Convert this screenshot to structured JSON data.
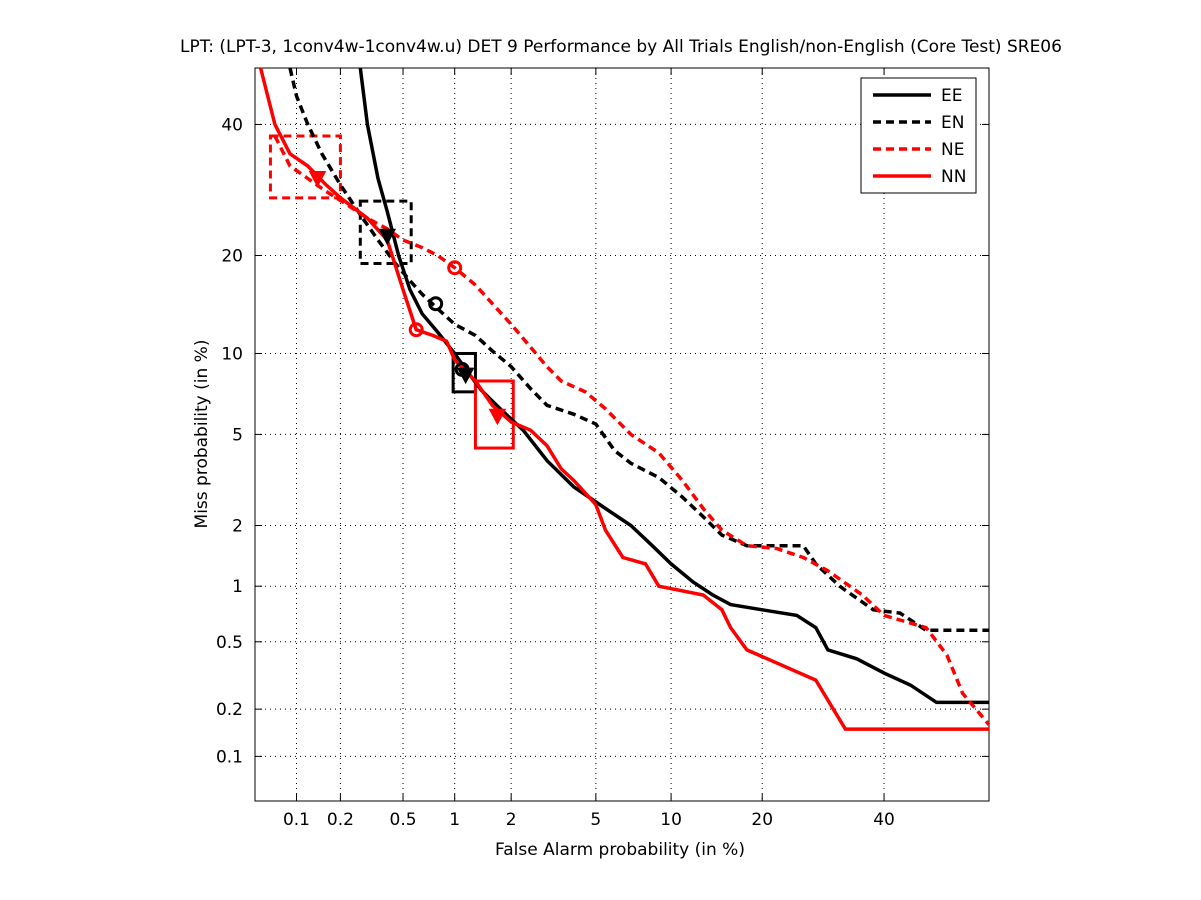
{
  "chart_data": {
    "type": "line",
    "title": "LPT: (LPT-3, 1conv4w-1conv4w.u) DET 9 Performance by All Trials English/non-English (Core Test) SRE06",
    "xlabel": "False Alarm probability (in %)",
    "ylabel": "Miss probability (in %)",
    "x_scale": "probit",
    "y_scale": "probit",
    "xlim": [
      0.05,
      60
    ],
    "ylim": [
      0.05,
      50
    ],
    "x_ticks": [
      0.1,
      0.2,
      0.5,
      1,
      2,
      5,
      10,
      20,
      40
    ],
    "x_tick_labels": [
      "0.1",
      "0.2",
      "0.5",
      "1",
      "2",
      "5",
      "10",
      "20",
      "40"
    ],
    "y_ticks": [
      0.1,
      0.2,
      0.5,
      1,
      2,
      5,
      10,
      20,
      40
    ],
    "y_tick_labels": [
      "0.1",
      "0.2",
      "0.5",
      "1",
      "2",
      "5",
      "10",
      "20",
      "40"
    ],
    "grid": true,
    "legend_position": "top-right",
    "series": [
      {
        "name": "EE",
        "color": "#000000",
        "dash": "solid",
        "points": [
          [
            0.27,
            50
          ],
          [
            0.3,
            40
          ],
          [
            0.35,
            31
          ],
          [
            0.4,
            26
          ],
          [
            0.47,
            20
          ],
          [
            0.55,
            16
          ],
          [
            0.65,
            13.5
          ],
          [
            0.8,
            11.8
          ],
          [
            1.0,
            10
          ],
          [
            1.15,
            8.8
          ],
          [
            1.4,
            7.4
          ],
          [
            1.8,
            6.2
          ],
          [
            2.3,
            5.2
          ],
          [
            3.0,
            3.9
          ],
          [
            4.0,
            3.0
          ],
          [
            5.5,
            2.4
          ],
          [
            7.0,
            2.0
          ],
          [
            8.5,
            1.6
          ],
          [
            10,
            1.3
          ],
          [
            12,
            1.05
          ],
          [
            14,
            0.9
          ],
          [
            16,
            0.8
          ],
          [
            20,
            0.75
          ],
          [
            25,
            0.7
          ],
          [
            28,
            0.6
          ],
          [
            30,
            0.45
          ],
          [
            35,
            0.4
          ],
          [
            40,
            0.33
          ],
          [
            45,
            0.28
          ],
          [
            50,
            0.22
          ],
          [
            60,
            0.22
          ]
        ]
      },
      {
        "name": "EN",
        "color": "#000000",
        "dash": "dashed",
        "points": [
          [
            0.09,
            50
          ],
          [
            0.1,
            45
          ],
          [
            0.12,
            40
          ],
          [
            0.15,
            35
          ],
          [
            0.2,
            30
          ],
          [
            0.28,
            25
          ],
          [
            0.35,
            22
          ],
          [
            0.45,
            19
          ],
          [
            0.55,
            17
          ],
          [
            0.65,
            15.5
          ],
          [
            0.8,
            14
          ],
          [
            1.0,
            12.5
          ],
          [
            1.3,
            11.5
          ],
          [
            1.6,
            10.2
          ],
          [
            2.0,
            9.0
          ],
          [
            2.5,
            7.5
          ],
          [
            3.0,
            6.5
          ],
          [
            4.0,
            6.0
          ],
          [
            5.0,
            5.5
          ],
          [
            6.0,
            4.3
          ],
          [
            7.0,
            3.8
          ],
          [
            9.0,
            3.3
          ],
          [
            11,
            2.7
          ],
          [
            13,
            2.2
          ],
          [
            15,
            1.8
          ],
          [
            18,
            1.6
          ],
          [
            22,
            1.6
          ],
          [
            26,
            1.6
          ],
          [
            28,
            1.3
          ],
          [
            32,
            1.0
          ],
          [
            38,
            0.75
          ],
          [
            43,
            0.72
          ],
          [
            48,
            0.58
          ],
          [
            60,
            0.58
          ]
        ]
      },
      {
        "name": "NE",
        "color": "#ff0000",
        "dash": "dashed",
        "points": [
          [
            0.07,
            38
          ],
          [
            0.09,
            33
          ],
          [
            0.12,
            31
          ],
          [
            0.16,
            29
          ],
          [
            0.22,
            27
          ],
          [
            0.3,
            25
          ],
          [
            0.4,
            23.5
          ],
          [
            0.5,
            22
          ],
          [
            0.65,
            21
          ],
          [
            0.8,
            20
          ],
          [
            1.0,
            18.5
          ],
          [
            1.3,
            16.5
          ],
          [
            1.6,
            14.5
          ],
          [
            2.0,
            12.5
          ],
          [
            2.5,
            10.5
          ],
          [
            3.0,
            9.0
          ],
          [
            3.5,
            8.0
          ],
          [
            4.5,
            7.3
          ],
          [
            5.5,
            6.3
          ],
          [
            7.0,
            5.0
          ],
          [
            9.0,
            4.2
          ],
          [
            11,
            3.2
          ],
          [
            13,
            2.4
          ],
          [
            15,
            1.9
          ],
          [
            18,
            1.6
          ],
          [
            22,
            1.55
          ],
          [
            26,
            1.4
          ],
          [
            30,
            1.2
          ],
          [
            36,
            0.9
          ],
          [
            40,
            0.7
          ],
          [
            48,
            0.6
          ],
          [
            52,
            0.42
          ],
          [
            55,
            0.25
          ],
          [
            60,
            0.16
          ]
        ]
      },
      {
        "name": "NN",
        "color": "#ff0000",
        "dash": "solid",
        "points": [
          [
            0.055,
            50
          ],
          [
            0.07,
            40
          ],
          [
            0.09,
            35
          ],
          [
            0.12,
            33
          ],
          [
            0.16,
            30
          ],
          [
            0.2,
            28
          ],
          [
            0.3,
            25
          ],
          [
            0.4,
            22
          ],
          [
            0.5,
            16
          ],
          [
            0.6,
            12
          ],
          [
            0.75,
            11.5
          ],
          [
            0.9,
            11
          ],
          [
            1.0,
            9.5
          ],
          [
            1.3,
            8.0
          ],
          [
            1.6,
            6.5
          ],
          [
            2.0,
            5.6
          ],
          [
            2.5,
            5.2
          ],
          [
            3.0,
            4.5
          ],
          [
            3.5,
            3.6
          ],
          [
            4.0,
            3.2
          ],
          [
            5.0,
            2.5
          ],
          [
            5.5,
            1.9
          ],
          [
            6.5,
            1.4
          ],
          [
            8.0,
            1.3
          ],
          [
            9.0,
            1.0
          ],
          [
            13,
            0.9
          ],
          [
            15,
            0.75
          ],
          [
            16,
            0.6
          ],
          [
            18,
            0.45
          ],
          [
            28,
            0.3
          ],
          [
            33,
            0.15
          ],
          [
            60,
            0.15
          ]
        ]
      }
    ],
    "markers": [
      {
        "series": "EE",
        "shape": "triangle-down",
        "fa": 1.15,
        "miss": 8.4
      },
      {
        "series": "EE",
        "shape": "circle",
        "fa": 1.1,
        "miss": 8.8
      },
      {
        "series": "EN",
        "shape": "triangle-down",
        "fa": 0.4,
        "miss": 22.5
      },
      {
        "series": "EN",
        "shape": "circle",
        "fa": 0.78,
        "miss": 14.5
      },
      {
        "series": "NE",
        "shape": "triangle-down",
        "fa": 0.14,
        "miss": 31
      },
      {
        "series": "NE",
        "shape": "circle",
        "fa": 1.0,
        "miss": 18.5
      },
      {
        "series": "NN",
        "shape": "triangle-down",
        "fa": 1.7,
        "miss": 5.9
      },
      {
        "series": "NN",
        "shape": "circle",
        "fa": 0.6,
        "miss": 12
      }
    ],
    "boxes": [
      {
        "series": "EE",
        "fa_range": [
          0.98,
          1.3
        ],
        "miss_range": [
          7.3,
          10
        ]
      },
      {
        "series": "EN",
        "fa_range": [
          0.27,
          0.56
        ],
        "miss_range": [
          19,
          27.5
        ]
      },
      {
        "series": "NE",
        "fa_range": [
          0.065,
          0.2
        ],
        "miss_range": [
          28,
          38
        ]
      },
      {
        "series": "NN",
        "fa_range": [
          1.3,
          2.05
        ],
        "miss_range": [
          4.4,
          8
        ]
      }
    ]
  }
}
